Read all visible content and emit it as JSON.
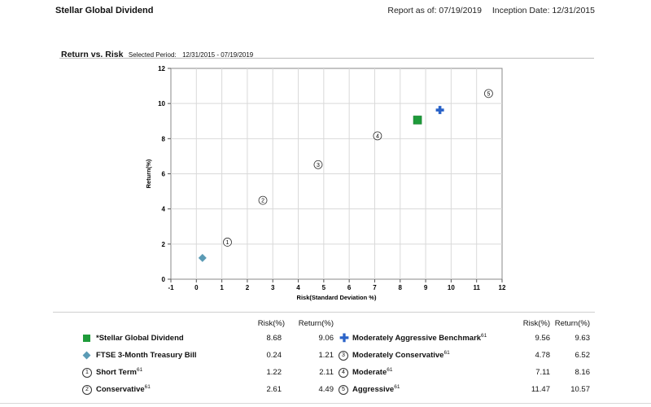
{
  "header": {
    "fund_name": "Stellar Global Dividend",
    "report_as_of": "Report as of: 07/19/2019",
    "inception": "Inception Date: 12/31/2015"
  },
  "section": {
    "title": "Return vs. Risk",
    "period_label": "Selected Period:",
    "period_value": "12/31/2015 - 07/19/2019"
  },
  "chart_data": {
    "type": "scatter",
    "xlabel": "Risk(Standard Deviation %)",
    "ylabel": "Return(%)",
    "xlim": [
      -1,
      12
    ],
    "ylim": [
      0,
      12
    ],
    "x_ticks": [
      -1,
      0,
      1,
      2,
      3,
      4,
      5,
      6,
      7,
      8,
      9,
      10,
      11,
      12
    ],
    "y_ticks": [
      0,
      2,
      4,
      6,
      8,
      10,
      12
    ],
    "grid": true,
    "series": [
      {
        "name": "*Stellar Global Dividend",
        "marker": "square",
        "color": "#1e9b3a",
        "x": 8.68,
        "y": 9.06
      },
      {
        "name": "FTSE 3-Month Treasury Bill",
        "marker": "diamond",
        "color": "#5b9bb5",
        "x": 0.24,
        "y": 1.21
      },
      {
        "name": "Short Term",
        "marker": "circle-1",
        "label": "1",
        "x": 1.22,
        "y": 2.11
      },
      {
        "name": "Conservative",
        "marker": "circle-2",
        "label": "2",
        "x": 2.61,
        "y": 4.49
      },
      {
        "name": "Moderately Conservative",
        "marker": "circle-3",
        "label": "3",
        "x": 4.78,
        "y": 6.52
      },
      {
        "name": "Moderate",
        "marker": "circle-4",
        "label": "4",
        "x": 7.11,
        "y": 8.16
      },
      {
        "name": "Moderately Aggressive Benchmark",
        "marker": "cross",
        "color": "#2a63c8",
        "x": 9.56,
        "y": 9.63
      },
      {
        "name": "Aggressive",
        "marker": "circle-5",
        "label": "5",
        "x": 11.47,
        "y": 10.57
      }
    ]
  },
  "legend": {
    "risk_header": "Risk(%)",
    "return_header": "Return(%)",
    "footnote": "61",
    "left": [
      {
        "name": "*Stellar Global Dividend",
        "risk": "8.68",
        "ret": "9.06",
        "icon": "square",
        "sup": ""
      },
      {
        "name": "FTSE 3-Month Treasury Bill",
        "risk": "0.24",
        "ret": "1.21",
        "icon": "diamond",
        "sup": ""
      },
      {
        "name": "Short Term",
        "risk": "1.22",
        "ret": "2.11",
        "icon": "1",
        "sup": "61"
      },
      {
        "name": "Conservative",
        "risk": "2.61",
        "ret": "4.49",
        "icon": "2",
        "sup": "61"
      }
    ],
    "right": [
      {
        "name": "Moderately Aggressive Benchmark",
        "risk": "9.56",
        "ret": "9.63",
        "icon": "cross",
        "sup": "61"
      },
      {
        "name": "Moderately Conservative",
        "risk": "4.78",
        "ret": "6.52",
        "icon": "3",
        "sup": "61"
      },
      {
        "name": "Moderate",
        "risk": "7.11",
        "ret": "8.16",
        "icon": "4",
        "sup": "61"
      },
      {
        "name": "Aggressive",
        "risk": "11.47",
        "ret": "10.57",
        "icon": "5",
        "sup": "61"
      }
    ]
  }
}
